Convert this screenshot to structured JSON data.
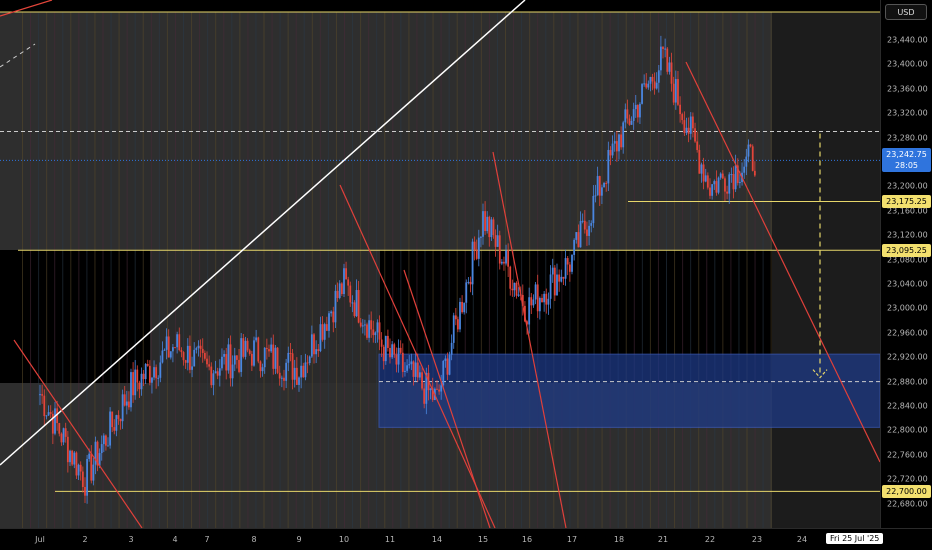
{
  "price_scale": {
    "currency": "USD",
    "ticks": [
      "23,440.00",
      "23,400.00",
      "23,360.00",
      "23,320.00",
      "23,280.00",
      "23,200.00",
      "23,160.00",
      "23,120.00",
      "23,080.00",
      "23,040.00",
      "23,000.00",
      "22,960.00",
      "22,920.00",
      "22,880.00",
      "22,840.00",
      "22,800.00",
      "22,760.00",
      "22,720.00",
      "22,680.00"
    ],
    "badges": {
      "current_price": "23,242.75",
      "countdown": "28:05",
      "level_upper": "23,175.25",
      "level_mid": "23,095.25",
      "level_low": "22,700.00"
    }
  },
  "time_axis": {
    "labels": [
      "Jul",
      "2",
      "3",
      "4",
      "7",
      "8",
      "9",
      "10",
      "11",
      "14",
      "15",
      "16",
      "17",
      "18",
      "21",
      "22",
      "23",
      "24"
    ],
    "crosshair_date": "Fri 25 Jul '25"
  },
  "colors": {
    "bull": "#4a86e0",
    "bear": "#e4453a",
    "level_line": "#e6d66a",
    "trendline_red": "#e0403a",
    "trendline_white": "#ffffff",
    "zone_blue": "#1e3a86",
    "current_price_badge": "#2f74dd",
    "projection": "#e6d66a"
  },
  "chart_data": {
    "type": "candlestick",
    "instrument_unit": "USD",
    "ylim": [
      22660,
      23480
    ],
    "price_levels": [
      23175.25,
      23095.25,
      22700.0
    ],
    "current_price": 23242.75,
    "dashed_level": 23290,
    "demand_zone": {
      "from": 22805,
      "to": 22925
    },
    "projection_target": 22880,
    "x_axis_days": [
      "Jul",
      "2",
      "3",
      "4",
      "7",
      "8",
      "9",
      "10",
      "11",
      "14",
      "15",
      "16",
      "17",
      "18",
      "21",
      "22",
      "23",
      "24"
    ],
    "close_path_keypoints": [
      {
        "day": "Jul",
        "close": 22860
      },
      {
        "day": "2",
        "close": 22720
      },
      {
        "day": "3",
        "close": 22870
      },
      {
        "day": "4",
        "close": 22940
      },
      {
        "day": "7",
        "close": 22900
      },
      {
        "day": "8",
        "close": 22930
      },
      {
        "day": "9",
        "close": 22900
      },
      {
        "day": "10",
        "close": 23040
      },
      {
        "day": "11",
        "close": 22920
      },
      {
        "day": "14",
        "close": 22850
      },
      {
        "day": "15",
        "close": 23150
      },
      {
        "day": "16",
        "close": 23000
      },
      {
        "day": "17",
        "close": 23080
      },
      {
        "day": "18",
        "close": 23280
      },
      {
        "day": "21",
        "close": 23410
      },
      {
        "day": "22",
        "close": 23200
      },
      {
        "day": "23",
        "close": 23250
      }
    ]
  }
}
